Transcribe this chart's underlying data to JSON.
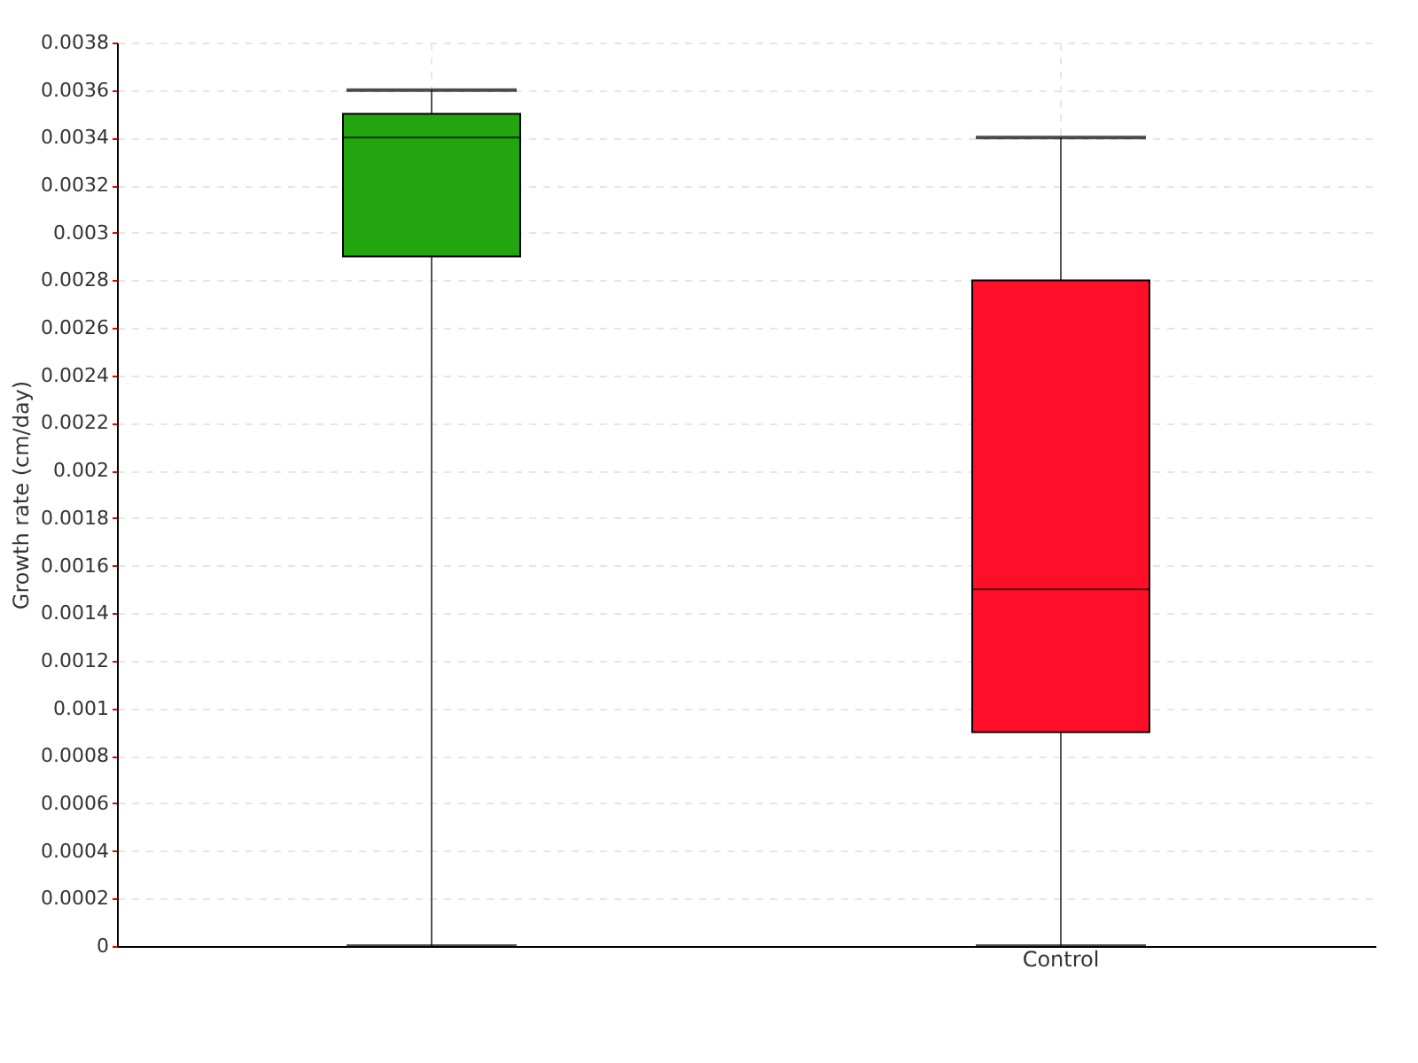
{
  "chart_data": {
    "type": "box",
    "ylabel": "Growth rate (cm/day)",
    "categories": [
      null,
      "Control"
    ],
    "colors": [
      "#22a50f",
      "#ff0d29"
    ],
    "boxes": [
      {
        "low": 0,
        "q1": 0.0029,
        "median": 0.0034,
        "q3": 0.0035,
        "high": 0.0036
      },
      {
        "low": 0,
        "q1": 0.0009,
        "median": 0.0015,
        "q3": 0.0028,
        "high": 0.0034
      }
    ],
    "ylim": [
      0,
      0.0038
    ],
    "yticks": [
      0,
      0.0002,
      0.0004,
      0.0006,
      0.0008,
      0.001,
      0.0012,
      0.0014,
      0.0016,
      0.0018,
      0.002,
      0.0022,
      0.0024,
      0.0026,
      0.0028,
      0.003,
      0.0032,
      0.0034,
      0.0036,
      0.0038
    ],
    "grid": true
  }
}
